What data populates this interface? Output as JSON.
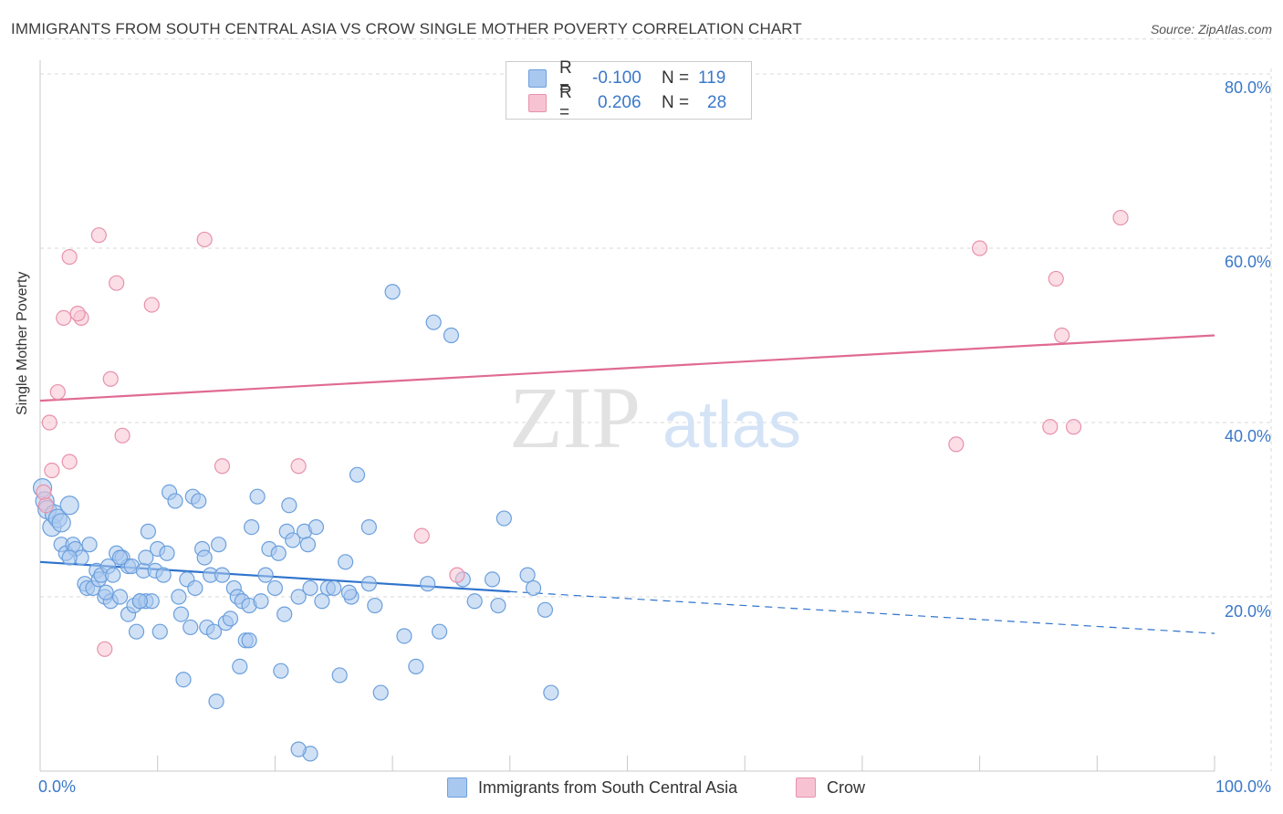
{
  "header": {
    "title": "IMMIGRANTS FROM SOUTH CENTRAL ASIA VS CROW SINGLE MOTHER POVERTY CORRELATION CHART",
    "source": "Source: ZipAtlas.com"
  },
  "watermark": {
    "zip": "ZIP",
    "atlas": "atlas"
  },
  "legend_top": {
    "rows": [
      {
        "r_label": "R =",
        "r_value": "-0.100",
        "n_label": "N =",
        "n_value": "119"
      },
      {
        "r_label": "R =",
        "r_value": "0.206",
        "n_label": "N =",
        "n_value": "28"
      }
    ]
  },
  "colors": {
    "blue_fill": "#a9c8ef",
    "blue_stroke": "#6b9fdc",
    "blue_line": "#2f73cc",
    "pink_fill": "#f7c3d2",
    "pink_stroke": "#e792ac",
    "pink_line": "#e06a94",
    "tick_text": "#3a78c9",
    "grid": "#d9d9d9"
  },
  "chart_data": {
    "type": "scatter",
    "title": "IMMIGRANTS FROM SOUTH CENTRAL ASIA VS CROW SINGLE MOTHER POVERTY CORRELATION CHART",
    "xlabel": "",
    "ylabel": "Single Mother Poverty",
    "xlim": [
      0,
      100
    ],
    "ylim": [
      0,
      85
    ],
    "x_tick_labels": [
      "0.0%",
      "100.0%"
    ],
    "y_ticks": [
      20,
      40,
      60,
      80
    ],
    "y_tick_labels": [
      "20.0%",
      "40.0%",
      "60.0%",
      "80.0%"
    ],
    "grid": true,
    "legend": {
      "placement": "bottom-center"
    },
    "series": [
      {
        "name": "Immigrants from South Central Asia",
        "color": "#a9c8ef",
        "R": -0.1,
        "N": 119,
        "trend": {
          "solid": [
            [
              0,
              24.0
            ],
            [
              40,
              20.6
            ]
          ],
          "dashed": [
            [
              40,
              20.6
            ],
            [
              100,
              15.8
            ]
          ]
        },
        "points": [
          [
            0.2,
            32.5
          ],
          [
            0.4,
            31.0
          ],
          [
            0.6,
            30.0
          ],
          [
            1.0,
            28.0
          ],
          [
            1.2,
            29.5
          ],
          [
            1.5,
            29.0
          ],
          [
            1.8,
            28.5
          ],
          [
            2.5,
            30.5
          ],
          [
            1.8,
            26.0
          ],
          [
            2.2,
            25.0
          ],
          [
            2.8,
            26.0
          ],
          [
            3.0,
            25.5
          ],
          [
            3.5,
            24.5
          ],
          [
            2.5,
            24.5
          ],
          [
            3.8,
            21.5
          ],
          [
            4.0,
            21.0
          ],
          [
            4.5,
            21.0
          ],
          [
            4.8,
            23.0
          ],
          [
            5.0,
            22.0
          ],
          [
            5.2,
            22.5
          ],
          [
            5.5,
            20.0
          ],
          [
            5.8,
            23.5
          ],
          [
            6.0,
            19.5
          ],
          [
            6.2,
            22.5
          ],
          [
            6.5,
            25.0
          ],
          [
            6.8,
            20.0
          ],
          [
            7.0,
            24.5
          ],
          [
            7.5,
            23.5
          ],
          [
            7.5,
            18.0
          ],
          [
            7.8,
            23.5
          ],
          [
            8.0,
            19.0
          ],
          [
            8.2,
            16.0
          ],
          [
            8.5,
            19.5
          ],
          [
            8.8,
            23.0
          ],
          [
            9.0,
            19.5
          ],
          [
            9.2,
            27.5
          ],
          [
            9.5,
            19.5
          ],
          [
            9.8,
            23.0
          ],
          [
            10.0,
            25.5
          ],
          [
            10.2,
            16.0
          ],
          [
            10.5,
            22.5
          ],
          [
            10.8,
            25.0
          ],
          [
            11.0,
            32.0
          ],
          [
            11.5,
            31.0
          ],
          [
            11.8,
            20.0
          ],
          [
            12.0,
            18.0
          ],
          [
            12.2,
            10.5
          ],
          [
            12.5,
            22.0
          ],
          [
            12.8,
            16.5
          ],
          [
            13.0,
            31.5
          ],
          [
            13.2,
            21.0
          ],
          [
            13.5,
            31.0
          ],
          [
            13.8,
            25.5
          ],
          [
            14.0,
            24.5
          ],
          [
            14.2,
            16.5
          ],
          [
            14.5,
            22.5
          ],
          [
            14.8,
            16.0
          ],
          [
            15.0,
            8.0
          ],
          [
            15.2,
            26.0
          ],
          [
            15.5,
            22.5
          ],
          [
            15.8,
            17.0
          ],
          [
            16.2,
            17.5
          ],
          [
            16.5,
            21.0
          ],
          [
            16.8,
            20.0
          ],
          [
            17.0,
            12.0
          ],
          [
            17.2,
            19.5
          ],
          [
            17.5,
            15.0
          ],
          [
            17.8,
            19.0
          ],
          [
            18.0,
            28.0
          ],
          [
            18.5,
            31.5
          ],
          [
            18.8,
            19.5
          ],
          [
            19.2,
            22.5
          ],
          [
            19.5,
            25.5
          ],
          [
            20.0,
            21.0
          ],
          [
            20.5,
            11.5
          ],
          [
            20.8,
            18.0
          ],
          [
            21.0,
            27.5
          ],
          [
            21.2,
            30.5
          ],
          [
            21.5,
            26.5
          ],
          [
            22.0,
            20.0
          ],
          [
            22.5,
            27.5
          ],
          [
            22.8,
            26.0
          ],
          [
            23.0,
            21.0
          ],
          [
            23.5,
            28.0
          ],
          [
            24.0,
            19.5
          ],
          [
            24.5,
            21.0
          ],
          [
            25.0,
            21.0
          ],
          [
            25.5,
            11.0
          ],
          [
            26.0,
            24.0
          ],
          [
            26.5,
            20.0
          ],
          [
            27.0,
            34.0
          ],
          [
            28.0,
            21.5
          ],
          [
            28.5,
            19.0
          ],
          [
            28.0,
            28.0
          ],
          [
            30.0,
            55.0
          ],
          [
            29.0,
            9.0
          ],
          [
            31.0,
            15.5
          ],
          [
            33.0,
            21.5
          ],
          [
            34.0,
            16.0
          ],
          [
            32.0,
            12.0
          ],
          [
            35.0,
            50.0
          ],
          [
            37.0,
            19.5
          ],
          [
            38.5,
            22.0
          ],
          [
            39.0,
            19.0
          ],
          [
            41.5,
            22.5
          ],
          [
            42.0,
            21.0
          ],
          [
            43.0,
            18.5
          ],
          [
            43.5,
            9.0
          ],
          [
            36.0,
            22.0
          ],
          [
            39.5,
            29.0
          ],
          [
            23.0,
            2.0
          ],
          [
            22.0,
            2.5
          ],
          [
            8.5,
            19.5
          ],
          [
            9.0,
            24.5
          ],
          [
            4.2,
            26.0
          ],
          [
            5.6,
            20.5
          ],
          [
            6.8,
            24.5
          ],
          [
            17.8,
            15.0
          ],
          [
            26.3,
            20.5
          ],
          [
            20.3,
            25.0
          ],
          [
            33.5,
            51.5
          ]
        ]
      },
      {
        "name": "Crow",
        "color": "#f7c3d2",
        "R": 0.206,
        "N": 28,
        "trend": {
          "solid": [
            [
              0,
              42.5
            ],
            [
              100,
              50.0
            ]
          ]
        },
        "points": [
          [
            0.3,
            32.0
          ],
          [
            0.5,
            30.5
          ],
          [
            1.0,
            34.5
          ],
          [
            1.5,
            43.5
          ],
          [
            2.0,
            52.0
          ],
          [
            2.5,
            59.0
          ],
          [
            3.5,
            52.0
          ],
          [
            3.2,
            52.5
          ],
          [
            5.0,
            61.5
          ],
          [
            6.5,
            56.0
          ],
          [
            9.5,
            53.5
          ],
          [
            14.0,
            61.0
          ],
          [
            0.8,
            40.0
          ],
          [
            6.0,
            45.0
          ],
          [
            7.0,
            38.5
          ],
          [
            2.5,
            35.5
          ],
          [
            5.5,
            14.0
          ],
          [
            15.5,
            35.0
          ],
          [
            22.0,
            35.0
          ],
          [
            32.5,
            27.0
          ],
          [
            35.5,
            22.5
          ],
          [
            78.0,
            37.5
          ],
          [
            86.0,
            39.5
          ],
          [
            88.0,
            39.5
          ],
          [
            86.5,
            56.5
          ],
          [
            87.0,
            50.0
          ],
          [
            92.0,
            63.5
          ],
          [
            80.0,
            60.0
          ]
        ]
      }
    ]
  },
  "legend_bottom": {
    "items": [
      {
        "label": "Immigrants from South Central Asia"
      },
      {
        "label": "Crow"
      }
    ]
  }
}
